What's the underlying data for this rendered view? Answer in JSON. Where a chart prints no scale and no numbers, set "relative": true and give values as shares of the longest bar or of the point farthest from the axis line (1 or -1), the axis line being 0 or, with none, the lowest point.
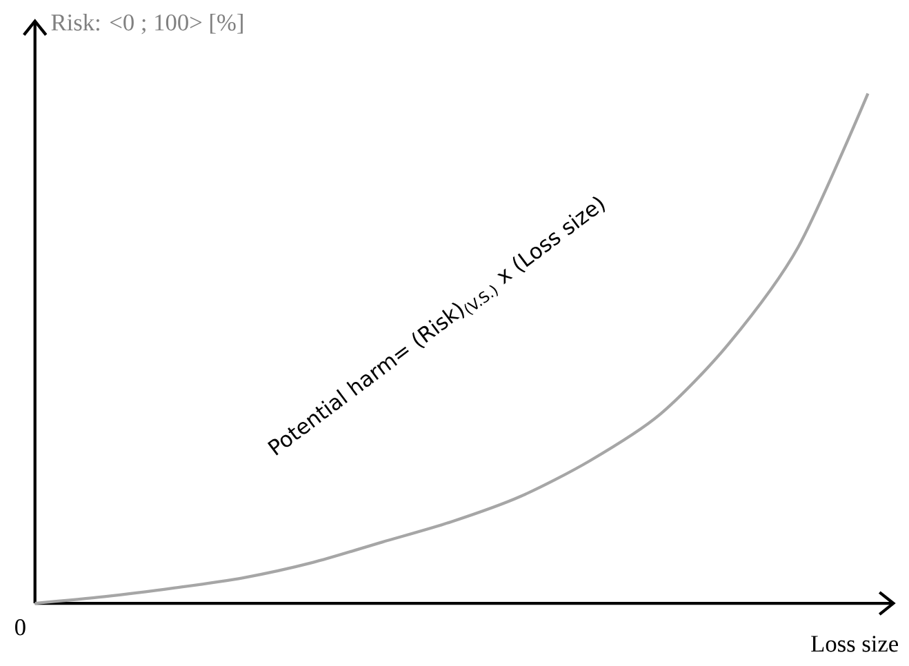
{
  "chart_data": {
    "type": "line",
    "relative": true,
    "ylabel": "Risk: <0 ; 100> [%]",
    "xlabel": "Loss size",
    "categories": [
      null,
      null,
      null,
      null,
      null,
      null,
      null,
      null,
      null,
      null,
      null,
      null,
      null
    ],
    "series": [
      {
        "color": "#a6a6a6",
        "values": [
          0,
          0.013,
          0.03,
          0.05,
          0.08,
          0.12,
          0.16,
          0.21,
          0.28,
          0.37,
          0.51,
          0.7,
          1.0
        ]
      }
    ],
    "annotations": [
      "0",
      "Potential harm= (Risk)$_{(V.S.)}$ x (Loss size)"
    ],
    "marker": "none",
    "line_style": "solid"
  }
}
